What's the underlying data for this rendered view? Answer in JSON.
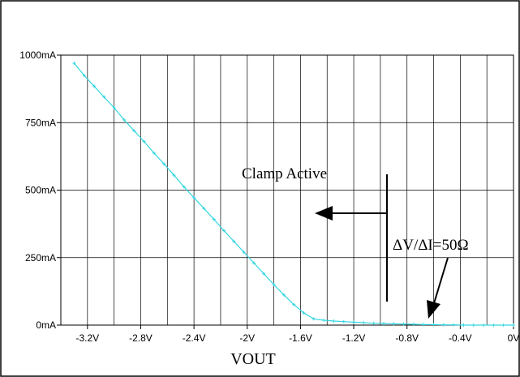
{
  "chart_data": {
    "type": "line",
    "title": "",
    "xlabel": "VOUT",
    "ylabel": "",
    "xlim": [
      -3.4,
      0
    ],
    "ylim": [
      0,
      1000
    ],
    "grid": true,
    "legend": "none",
    "xticks": [
      {
        "value": -3.2,
        "label": "-3.2V"
      },
      {
        "value": -2.8,
        "label": "-2.8V"
      },
      {
        "value": -2.4,
        "label": "-2.4V"
      },
      {
        "value": -2.0,
        "label": "-2V"
      },
      {
        "value": -1.6,
        "label": "-1.6V"
      },
      {
        "value": -1.2,
        "label": "-1.2V"
      },
      {
        "value": -0.8,
        "label": "-0.8V"
      },
      {
        "value": -0.4,
        "label": "-0.4V"
      },
      {
        "value": 0.0,
        "label": "0V"
      }
    ],
    "yticks": [
      {
        "value": 0,
        "label": "0mA"
      },
      {
        "value": 250,
        "label": "250mA"
      },
      {
        "value": 500,
        "label": "500mA"
      },
      {
        "value": 750,
        "label": "750mA"
      },
      {
        "value": 1000,
        "label": "1000mA"
      }
    ],
    "series": [
      {
        "color": "#33d6e0",
        "points": [
          [
            -3.3,
            970
          ],
          [
            -3.225,
            925
          ],
          [
            -3.15,
            885
          ],
          [
            -3.075,
            845
          ],
          [
            -3.0,
            805
          ],
          [
            -2.925,
            760
          ],
          [
            -2.85,
            720
          ],
          [
            -2.775,
            680
          ],
          [
            -2.7,
            637
          ],
          [
            -2.625,
            597
          ],
          [
            -2.55,
            555
          ],
          [
            -2.475,
            512
          ],
          [
            -2.4,
            472
          ],
          [
            -2.325,
            432
          ],
          [
            -2.25,
            392
          ],
          [
            -2.175,
            350
          ],
          [
            -2.1,
            310
          ],
          [
            -2.025,
            270
          ],
          [
            -1.95,
            230
          ],
          [
            -1.875,
            190
          ],
          [
            -1.8,
            150
          ],
          [
            -1.725,
            112
          ],
          [
            -1.65,
            76
          ],
          [
            -1.575,
            45
          ],
          [
            -1.5,
            23
          ],
          [
            -1.425,
            18
          ],
          [
            -1.35,
            15
          ],
          [
            -1.275,
            13
          ],
          [
            -1.2,
            11
          ],
          [
            -1.125,
            9
          ],
          [
            -1.05,
            7
          ],
          [
            -0.975,
            6
          ],
          [
            -0.9,
            5
          ],
          [
            -0.825,
            4
          ],
          [
            -0.75,
            3
          ],
          [
            -0.675,
            2
          ],
          [
            -0.6,
            2
          ],
          [
            -0.525,
            1
          ],
          [
            -0.45,
            1
          ],
          [
            -0.375,
            0
          ],
          [
            -0.3,
            0
          ],
          [
            -0.225,
            0
          ],
          [
            -0.15,
            0
          ],
          [
            -0.075,
            0
          ],
          [
            0.0,
            0
          ]
        ]
      }
    ],
    "annotations": [
      {
        "text": "Clamp Active"
      },
      {
        "text": "ΔV/ΔI=50Ω"
      }
    ]
  }
}
